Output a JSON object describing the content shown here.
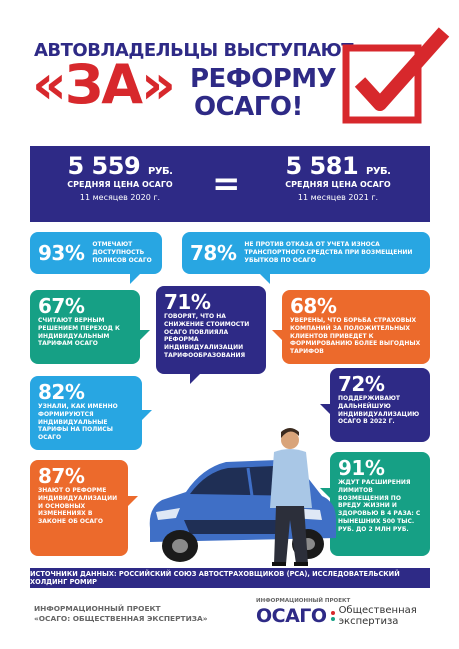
{
  "header": {
    "line1": "АВТОВЛАДЕЛЬЦЫ ВЫСТУПАЮТ",
    "za": "«ЗА»",
    "reform": "РЕФОРМУ",
    "osago": "ОСАГО!"
  },
  "prices": {
    "left": {
      "value": "5 559",
      "unit": "РУБ.",
      "label": "СРЕДНЯЯ ЦЕНА ОСАГО",
      "period": "11 месяцев 2020 г."
    },
    "equals": "=",
    "right": {
      "value": "5 581",
      "unit": "РУБ.",
      "label": "СРЕДНЯЯ ЦЕНА ОСАГО",
      "period": "11 месяцев 2021 г."
    }
  },
  "stats": [
    {
      "pct": "93%",
      "text": "отмечают доступность полисов ОСАГО",
      "color": "blue"
    },
    {
      "pct": "78%",
      "text": "не против отказа от учета износа транспортного средства при возмещении убытков по ОСАГО",
      "color": "blue"
    },
    {
      "pct": "67%",
      "text": "считают верным решением переход к индивидуальным тарифам ОСАГО",
      "color": "green"
    },
    {
      "pct": "71%",
      "text": "говорят, что на снижение стоимости ОСАГО повлияла реформа индивидуализации тарифообразования",
      "color": "navy"
    },
    {
      "pct": "68%",
      "text": "уверены, что борьба страховых компаний за положительных клиентов приведет к формированию более выгодных тарифов",
      "color": "orange"
    },
    {
      "pct": "82%",
      "text": "узнали, как именно формируются индивидуальные тарифы на полисы ОСАГО",
      "color": "blue"
    },
    {
      "pct": "72%",
      "text": "поддерживают дальнейшую индивидуализацию ОСАГО в 2022 г.",
      "color": "navy"
    },
    {
      "pct": "87%",
      "text": "знают о реформе индивидуализации и основных изменениях в законе об ОСАГО",
      "color": "orange"
    },
    {
      "pct": "91%",
      "text": "ждут расширения лимитов возмещения по вреду жизни и здоровью в 4 раза: с нынешних 500 тыс. руб. до 2 млн руб.",
      "color": "green"
    }
  ],
  "sources": "Источники данных: Российский Союз Автостраховщиков (РСА), исследовательский холдинг РОМИР",
  "footer": {
    "left_line1": "Информационный проект",
    "left_line2": "«ОСАГО: общественная экспертиза»",
    "logo_small": "Информационный проект",
    "logo_word": "ОСАГО",
    "logo_sub1": "Общественная",
    "logo_sub2": "экспертиза"
  },
  "colors": {
    "navy": "#2e2a86",
    "red": "#d7282c",
    "blue": "#28a6e2",
    "green": "#16a085",
    "orange": "#ec6a2c"
  },
  "icons": [
    "check-mark-icon",
    "car-illustration",
    "man-illustration"
  ]
}
